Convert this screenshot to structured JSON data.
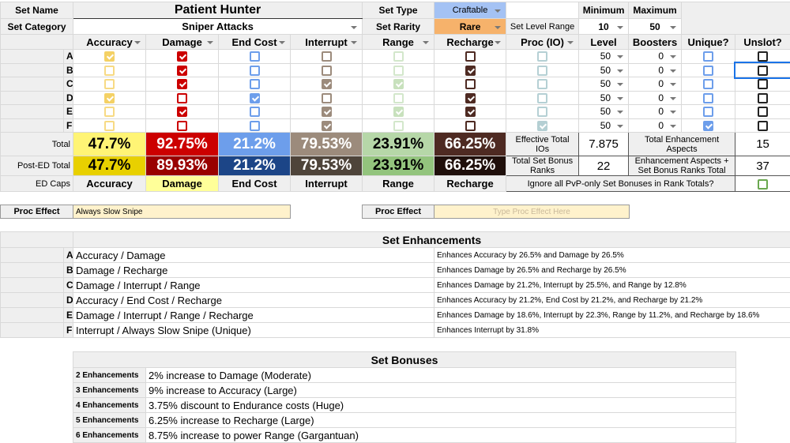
{
  "header": {
    "set_name_label": "Set Name",
    "set_name": "Patient Hunter",
    "set_category_label": "Set Category",
    "set_category": "Sniper Attacks",
    "set_type_label": "Set Type",
    "set_type": "Craftable",
    "set_rarity_label": "Set Rarity",
    "set_rarity": "Rare",
    "level_range_label": "Set Level Range",
    "minimum_label": "Minimum",
    "maximum_label": "Maximum",
    "minimum": "10",
    "maximum": "50"
  },
  "columns": [
    "Accuracy",
    "Damage",
    "End Cost",
    "Interrupt",
    "Range",
    "Recharge",
    "Proc (IO)",
    "Level",
    "Boosters",
    "Unique?",
    "Unslot?"
  ],
  "column_colors": [
    "#f1c232",
    "#cc0000",
    "#6d9eeb",
    "#9c8b7c",
    "#b6d7a8",
    "#4e2a22",
    "#a2c4c9",
    "",
    "",
    "#6d9eeb",
    "#222222"
  ],
  "rows": [
    {
      "letter": "A",
      "checks": [
        true,
        true,
        false,
        false,
        false,
        false,
        false
      ],
      "level": "50",
      "boosters": "0",
      "unique": false,
      "unslot": false
    },
    {
      "letter": "B",
      "checks": [
        false,
        true,
        false,
        false,
        false,
        true,
        false
      ],
      "level": "50",
      "boosters": "0",
      "unique": false,
      "unslot": false
    },
    {
      "letter": "C",
      "checks": [
        false,
        true,
        false,
        true,
        true,
        false,
        false
      ],
      "level": "50",
      "boosters": "0",
      "unique": false,
      "unslot": false
    },
    {
      "letter": "D",
      "checks": [
        true,
        false,
        true,
        false,
        false,
        true,
        false
      ],
      "level": "50",
      "boosters": "0",
      "unique": false,
      "unslot": false
    },
    {
      "letter": "E",
      "checks": [
        false,
        true,
        false,
        true,
        true,
        true,
        false
      ],
      "level": "50",
      "boosters": "0",
      "unique": false,
      "unslot": false
    },
    {
      "letter": "F",
      "checks": [
        false,
        false,
        false,
        true,
        false,
        false,
        true
      ],
      "level": "50",
      "boosters": "0",
      "unique": true,
      "unslot": false
    }
  ],
  "totals": {
    "total_label": "Total",
    "post_ed_label": "Post-ED Total",
    "ed_caps_label": "ED Caps",
    "total": [
      "47.7%",
      "92.75%",
      "21.2%",
      "79.53%",
      "23.91%",
      "66.25%"
    ],
    "post_ed": [
      "47.7%",
      "89.93%",
      "21.2%",
      "79.53%",
      "23.91%",
      "66.25%"
    ],
    "ed_caps": [
      "Accuracy",
      "Damage",
      "End Cost",
      "Interrupt",
      "Range",
      "Recharge"
    ],
    "effective_label": "Effective Total IOs",
    "effective": "7.875",
    "bonus_ranks_label": "Total Set Bonus Ranks",
    "bonus_ranks": "22",
    "aspects_label": "Total Enhancement Aspects",
    "aspects": "15",
    "aspects_total_label": "Enhancement Aspects + Set Bonus Ranks Total",
    "aspects_total": "37",
    "ignore_pvp_label": "Ignore all PvP-only Set Bonuses in Rank Totals?"
  },
  "proc": {
    "label": "Proc Effect",
    "value": "Always Slow Snipe",
    "label2": "Proc Effect",
    "placeholder2": "Type Proc Effect Here"
  },
  "set_enhancements": {
    "title": "Set Enhancements",
    "items": [
      {
        "letter": "A",
        "name": "Accuracy / Damage",
        "desc": "Enhances Accuracy by 26.5% and Damage by 26.5%"
      },
      {
        "letter": "B",
        "name": "Damage / Recharge",
        "desc": "Enhances Damage by 26.5% and Recharge by 26.5%"
      },
      {
        "letter": "C",
        "name": "Damage / Interrupt / Range",
        "desc": "Enhances Damage by 21.2%, Interrupt by 25.5%, and Range by 12.8%"
      },
      {
        "letter": "D",
        "name": "Accuracy / End Cost / Recharge",
        "desc": "Enhances Accuracy by 21.2%, End Cost by 21.2%, and Recharge by 21.2%"
      },
      {
        "letter": "E",
        "name": "Damage / Interrupt / Range / Recharge",
        "desc": "Enhances Damage by 18.6%, Interrupt by 22.3%, Range by 11.2%, and Recharge by 18.6%"
      },
      {
        "letter": "F",
        "name": "Interrupt / Always Slow Snipe (Unique)",
        "desc": "Enhances Interrupt by 31.8%"
      }
    ]
  },
  "set_bonuses": {
    "title": "Set Bonuses",
    "items": [
      {
        "count": "2 Enhancements",
        "bonus": "2% increase to Damage (Moderate)"
      },
      {
        "count": "3 Enhancements",
        "bonus": "9% increase to Accuracy (Large)"
      },
      {
        "count": "4 Enhancements",
        "bonus": "3.75% discount to Endurance costs (Huge)"
      },
      {
        "count": "5 Enhancements",
        "bonus": "6.25% increase to Recharge (Large)"
      },
      {
        "count": "6 Enhancements",
        "bonus": "8.75% increase to power Range (Gargantuan)"
      }
    ]
  }
}
